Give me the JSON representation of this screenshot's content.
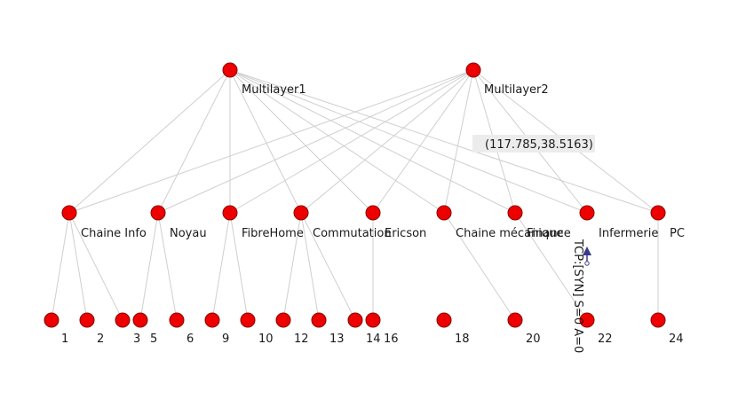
{
  "graph": {
    "core": [
      {
        "id": "m1",
        "label": "Multilayer1"
      },
      {
        "id": "m2",
        "label": "Multilayer2"
      }
    ],
    "distribution": [
      {
        "id": "d1",
        "label": "Chaine Info"
      },
      {
        "id": "d2",
        "label": "Noyau"
      },
      {
        "id": "d3",
        "label": "FibreHome"
      },
      {
        "id": "d4",
        "label": "Commutation"
      },
      {
        "id": "d5",
        "label": "Ericson"
      },
      {
        "id": "d6",
        "label": "Chaine mécanique"
      },
      {
        "id": "d7",
        "label": "Finance"
      },
      {
        "id": "d8",
        "label": "Infermerie"
      },
      {
        "id": "d9",
        "label": "PC"
      }
    ],
    "access": [
      {
        "id": "a1",
        "label": "1",
        "parent": "d1"
      },
      {
        "id": "a2",
        "label": "2",
        "parent": "d1"
      },
      {
        "id": "a3",
        "label": "3",
        "parent": "d1"
      },
      {
        "id": "a5",
        "label": "5",
        "parent": "d2"
      },
      {
        "id": "a6",
        "label": "6",
        "parent": "d2"
      },
      {
        "id": "a9",
        "label": "9",
        "parent": "d3"
      },
      {
        "id": "a10",
        "label": "10",
        "parent": "d3"
      },
      {
        "id": "a12",
        "label": "12",
        "parent": "d4"
      },
      {
        "id": "a13",
        "label": "13",
        "parent": "d4"
      },
      {
        "id": "a14",
        "label": "14",
        "parent": "d4"
      },
      {
        "id": "a16",
        "label": "16",
        "parent": "d5"
      },
      {
        "id": "a18",
        "label": "18",
        "parent": null
      },
      {
        "id": "a20",
        "label": "20",
        "parent": "d6"
      },
      {
        "id": "a22",
        "label": "22",
        "parent": "d7"
      },
      {
        "id": "a24",
        "label": "24",
        "parent": "d9"
      }
    ]
  },
  "cursor_coordinate": "(117.785,38.5163)",
  "packet_label": "TCP:[SYN] S=0 A=0"
}
